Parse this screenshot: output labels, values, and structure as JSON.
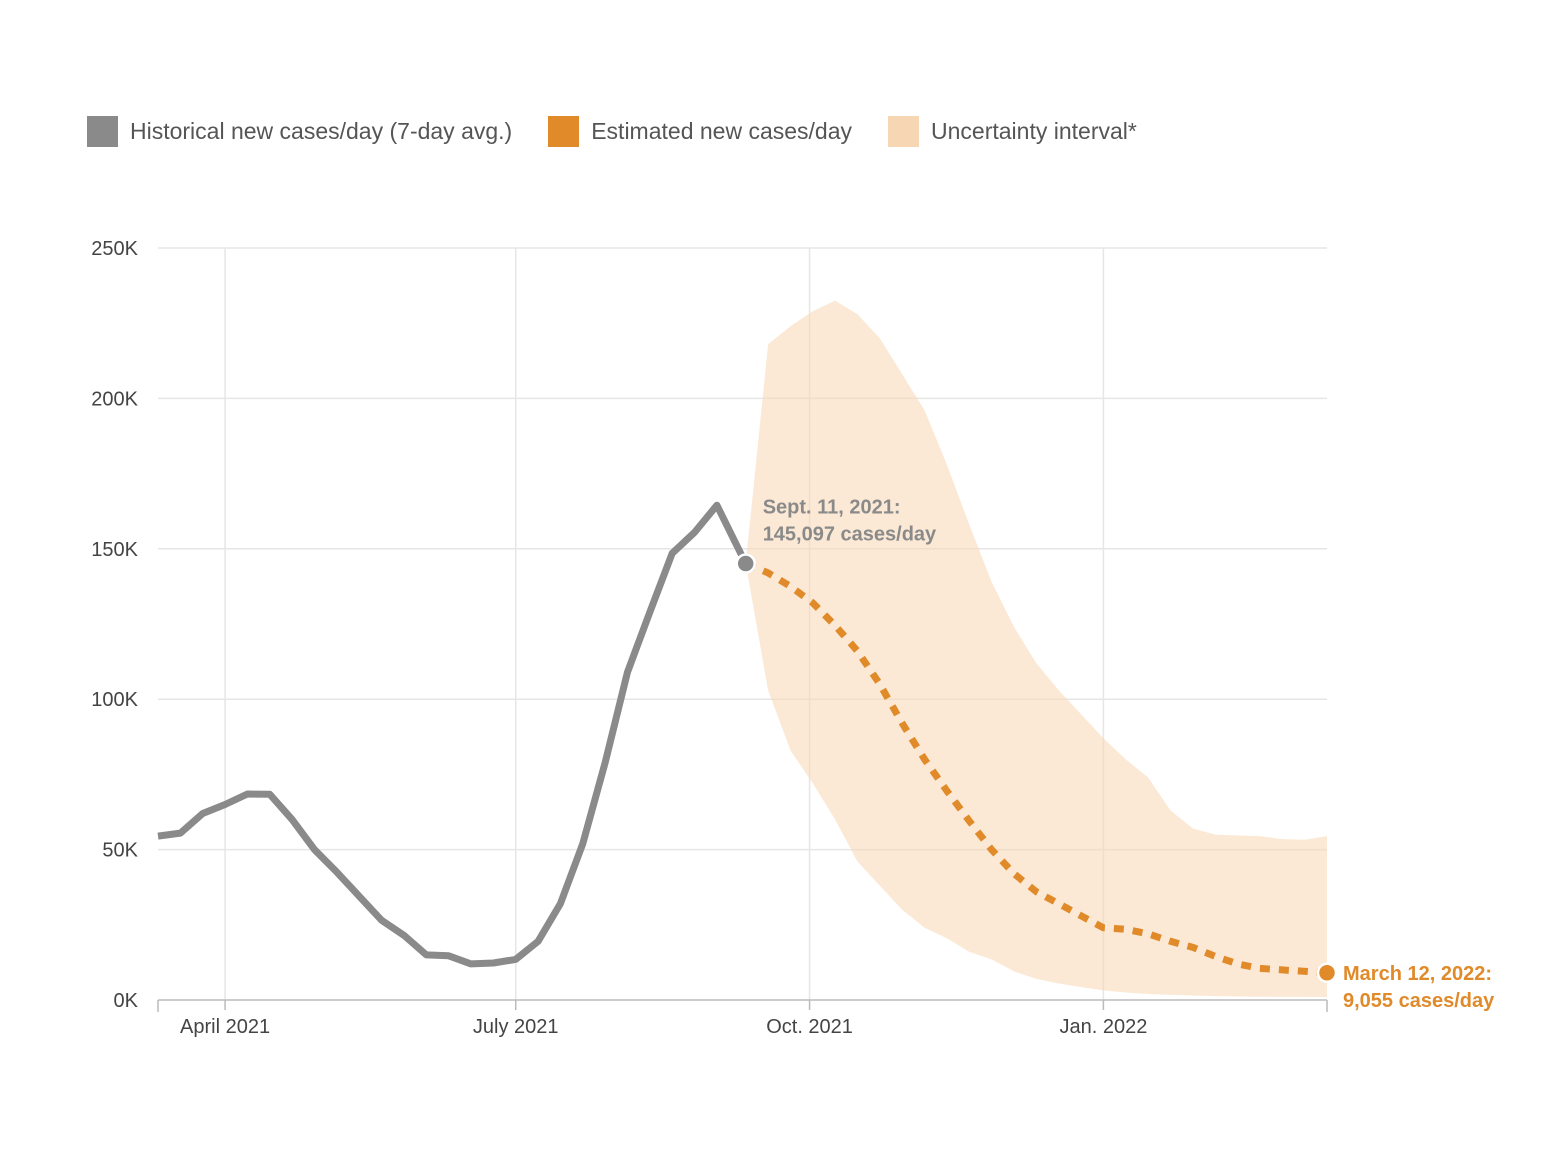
{
  "legend": {
    "items": [
      {
        "label": "Historical new cases/day (7-day avg.)",
        "color": "#8a8a8a"
      },
      {
        "label": "Estimated new cases/day",
        "color": "#e08a2a"
      },
      {
        "label": "Uncertainty interval*",
        "color": "#f7d7b3"
      }
    ]
  },
  "chart_data": {
    "type": "line",
    "title": "",
    "xlabel": "",
    "ylabel": "",
    "ylim": [
      0,
      250000
    ],
    "xlim": [
      "2021-03-11",
      "2022-03-12"
    ],
    "grid": true,
    "legend_position": "top-left",
    "y_ticks": [
      {
        "value": 0,
        "label": "0K"
      },
      {
        "value": 50000,
        "label": "50K"
      },
      {
        "value": 100000,
        "label": "100K"
      },
      {
        "value": 150000,
        "label": "150K"
      },
      {
        "value": 200000,
        "label": "200K"
      },
      {
        "value": 250000,
        "label": "250K"
      }
    ],
    "x_ticks": [
      {
        "value": "2021-04-01",
        "label": "April 2021"
      },
      {
        "value": "2021-07-01",
        "label": "July 2021"
      },
      {
        "value": "2021-10-01",
        "label": "Oct. 2021"
      },
      {
        "value": "2022-01-01",
        "label": "Jan. 2022"
      }
    ],
    "series": [
      {
        "name": "Historical new cases/day (7-day avg.)",
        "color": "#8a8a8a",
        "style": "solid",
        "points": [
          {
            "x": "2021-03-11",
            "y": 54500
          },
          {
            "x": "2021-03-18",
            "y": 55500
          },
          {
            "x": "2021-03-25",
            "y": 62000
          },
          {
            "x": "2021-04-01",
            "y": 65000
          },
          {
            "x": "2021-04-08",
            "y": 68500
          },
          {
            "x": "2021-04-15",
            "y": 68400
          },
          {
            "x": "2021-04-22",
            "y": 60000
          },
          {
            "x": "2021-04-29",
            "y": 50000
          },
          {
            "x": "2021-05-06",
            "y": 42500
          },
          {
            "x": "2021-05-13",
            "y": 34500
          },
          {
            "x": "2021-05-20",
            "y": 26500
          },
          {
            "x": "2021-05-27",
            "y": 21500
          },
          {
            "x": "2021-06-03",
            "y": 15000
          },
          {
            "x": "2021-06-10",
            "y": 14700
          },
          {
            "x": "2021-06-17",
            "y": 12000
          },
          {
            "x": "2021-06-24",
            "y": 12300
          },
          {
            "x": "2021-07-01",
            "y": 13500
          },
          {
            "x": "2021-07-08",
            "y": 19500
          },
          {
            "x": "2021-07-15",
            "y": 32000
          },
          {
            "x": "2021-07-22",
            "y": 52000
          },
          {
            "x": "2021-07-29",
            "y": 79000
          },
          {
            "x": "2021-08-05",
            "y": 109000
          },
          {
            "x": "2021-08-12",
            "y": 129000
          },
          {
            "x": "2021-08-19",
            "y": 148500
          },
          {
            "x": "2021-08-26",
            "y": 155500
          },
          {
            "x": "2021-09-02",
            "y": 164500
          },
          {
            "x": "2021-09-11",
            "y": 145097
          }
        ]
      },
      {
        "name": "Estimated new cases/day",
        "color": "#e08a2a",
        "style": "dotted",
        "points": [
          {
            "x": "2021-09-11",
            "y": 145097
          },
          {
            "x": "2021-09-18",
            "y": 142000
          },
          {
            "x": "2021-09-25",
            "y": 137500
          },
          {
            "x": "2021-10-02",
            "y": 132000
          },
          {
            "x": "2021-10-09",
            "y": 124500
          },
          {
            "x": "2021-10-16",
            "y": 116000
          },
          {
            "x": "2021-10-23",
            "y": 105000
          },
          {
            "x": "2021-10-30",
            "y": 92000
          },
          {
            "x": "2021-11-06",
            "y": 80000
          },
          {
            "x": "2021-11-13",
            "y": 69500
          },
          {
            "x": "2021-11-20",
            "y": 59500
          },
          {
            "x": "2021-11-27",
            "y": 50000
          },
          {
            "x": "2021-12-04",
            "y": 42000
          },
          {
            "x": "2021-12-11",
            "y": 36000
          },
          {
            "x": "2021-12-18",
            "y": 32000
          },
          {
            "x": "2021-12-25",
            "y": 28000
          },
          {
            "x": "2022-01-01",
            "y": 24000
          },
          {
            "x": "2022-01-08",
            "y": 23500
          },
          {
            "x": "2022-01-15",
            "y": 22000
          },
          {
            "x": "2022-01-22",
            "y": 19500
          },
          {
            "x": "2022-01-29",
            "y": 17500
          },
          {
            "x": "2022-02-05",
            "y": 14500
          },
          {
            "x": "2022-02-12",
            "y": 12000
          },
          {
            "x": "2022-02-19",
            "y": 10500
          },
          {
            "x": "2022-02-26",
            "y": 10000
          },
          {
            "x": "2022-03-12",
            "y": 9055
          }
        ]
      }
    ],
    "uncertainty_interval": {
      "name": "Uncertainty interval*",
      "color": "#f7d7b3",
      "upper": [
        {
          "x": "2021-09-11",
          "y": 145097
        },
        {
          "x": "2021-09-18",
          "y": 218000
        },
        {
          "x": "2021-09-25",
          "y": 224000
        },
        {
          "x": "2021-10-02",
          "y": 229000
        },
        {
          "x": "2021-10-09",
          "y": 232500
        },
        {
          "x": "2021-10-16",
          "y": 228000
        },
        {
          "x": "2021-10-23",
          "y": 220000
        },
        {
          "x": "2021-10-30",
          "y": 208000
        },
        {
          "x": "2021-11-06",
          "y": 196000
        },
        {
          "x": "2021-11-13",
          "y": 178000
        },
        {
          "x": "2021-11-20",
          "y": 158000
        },
        {
          "x": "2021-11-27",
          "y": 139000
        },
        {
          "x": "2021-12-04",
          "y": 124000
        },
        {
          "x": "2021-12-11",
          "y": 112000
        },
        {
          "x": "2021-12-18",
          "y": 103000
        },
        {
          "x": "2021-12-25",
          "y": 95000
        },
        {
          "x": "2022-01-01",
          "y": 87000
        },
        {
          "x": "2022-01-08",
          "y": 80000
        },
        {
          "x": "2022-01-15",
          "y": 74000
        },
        {
          "x": "2022-01-22",
          "y": 63000
        },
        {
          "x": "2022-01-29",
          "y": 57000
        },
        {
          "x": "2022-02-05",
          "y": 55000
        },
        {
          "x": "2022-02-12",
          "y": 54700
        },
        {
          "x": "2022-02-19",
          "y": 54500
        },
        {
          "x": "2022-02-26",
          "y": 53500
        },
        {
          "x": "2022-03-05",
          "y": 53300
        },
        {
          "x": "2022-03-12",
          "y": 54500
        }
      ],
      "lower": [
        {
          "x": "2021-09-11",
          "y": 145097
        },
        {
          "x": "2021-09-18",
          "y": 103000
        },
        {
          "x": "2021-09-25",
          "y": 83000
        },
        {
          "x": "2021-10-02",
          "y": 72000
        },
        {
          "x": "2021-10-09",
          "y": 60000
        },
        {
          "x": "2021-10-16",
          "y": 46000
        },
        {
          "x": "2021-10-23",
          "y": 38000
        },
        {
          "x": "2021-10-30",
          "y": 30000
        },
        {
          "x": "2021-11-06",
          "y": 24000
        },
        {
          "x": "2021-11-13",
          "y": 20500
        },
        {
          "x": "2021-11-20",
          "y": 16000
        },
        {
          "x": "2021-11-27",
          "y": 13500
        },
        {
          "x": "2021-12-04",
          "y": 9500
        },
        {
          "x": "2021-12-11",
          "y": 7000
        },
        {
          "x": "2021-12-18",
          "y": 5500
        },
        {
          "x": "2021-12-25",
          "y": 4300
        },
        {
          "x": "2022-01-01",
          "y": 3200
        },
        {
          "x": "2022-01-08",
          "y": 2500
        },
        {
          "x": "2022-01-15",
          "y": 2000
        },
        {
          "x": "2022-01-22",
          "y": 1700
        },
        {
          "x": "2022-02-05",
          "y": 1300
        },
        {
          "x": "2022-02-19",
          "y": 1100
        },
        {
          "x": "2022-03-12",
          "y": 1000
        }
      ]
    },
    "annotations": [
      {
        "x": "2021-09-11",
        "y": 145097,
        "line1": "Sept. 11, 2021:",
        "line2": "145,097 cases/day",
        "color": "#8a8a8a"
      },
      {
        "x": "2022-03-12",
        "y": 9055,
        "line1": "March 12, 2022:",
        "line2": "9,055 cases/day",
        "color": "#e08a2a"
      }
    ]
  }
}
